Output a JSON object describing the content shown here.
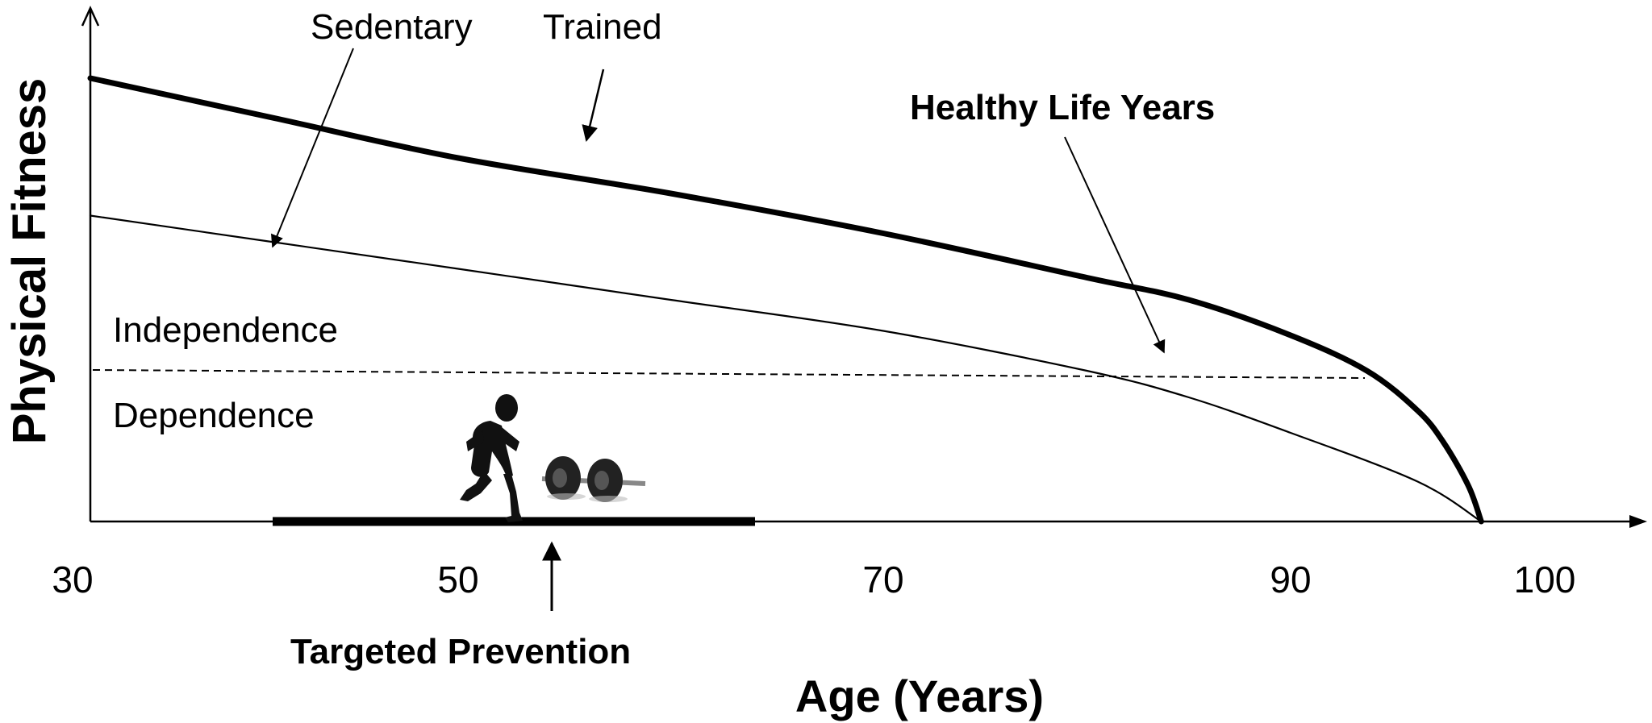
{
  "chart_data": {
    "type": "line",
    "xlabel": "Age (Years)",
    "ylabel": "Physical Fitness",
    "x_ticks": [
      "30",
      "50",
      "70",
      "90",
      "100"
    ],
    "series": [
      {
        "name": "Trained",
        "x": [
          30,
          40,
          50,
          60,
          70,
          80,
          85,
          90,
          93,
          95,
          96,
          97,
          97.5
        ],
        "y": [
          1.0,
          0.91,
          0.82,
          0.74,
          0.65,
          0.55,
          0.5,
          0.42,
          0.34,
          0.25,
          0.18,
          0.08,
          0
        ]
      },
      {
        "name": "Sedentary",
        "x": [
          30,
          40,
          50,
          60,
          70,
          80,
          85,
          90,
          95,
          97.5
        ],
        "y": [
          0.69,
          0.63,
          0.57,
          0.5,
          0.43,
          0.34,
          0.28,
          0.2,
          0.09,
          0
        ]
      }
    ],
    "threshold": {
      "label_above": "Independence",
      "label_below": "Dependence"
    },
    "annotations": {
      "sedentary": "Sedentary",
      "trained": "Trained",
      "healthy_life_years": "Healthy Life Years",
      "targeted_prevention": "Targeted Prevention"
    },
    "icons": [
      "runner-icon",
      "dumbbell-icon"
    ]
  }
}
